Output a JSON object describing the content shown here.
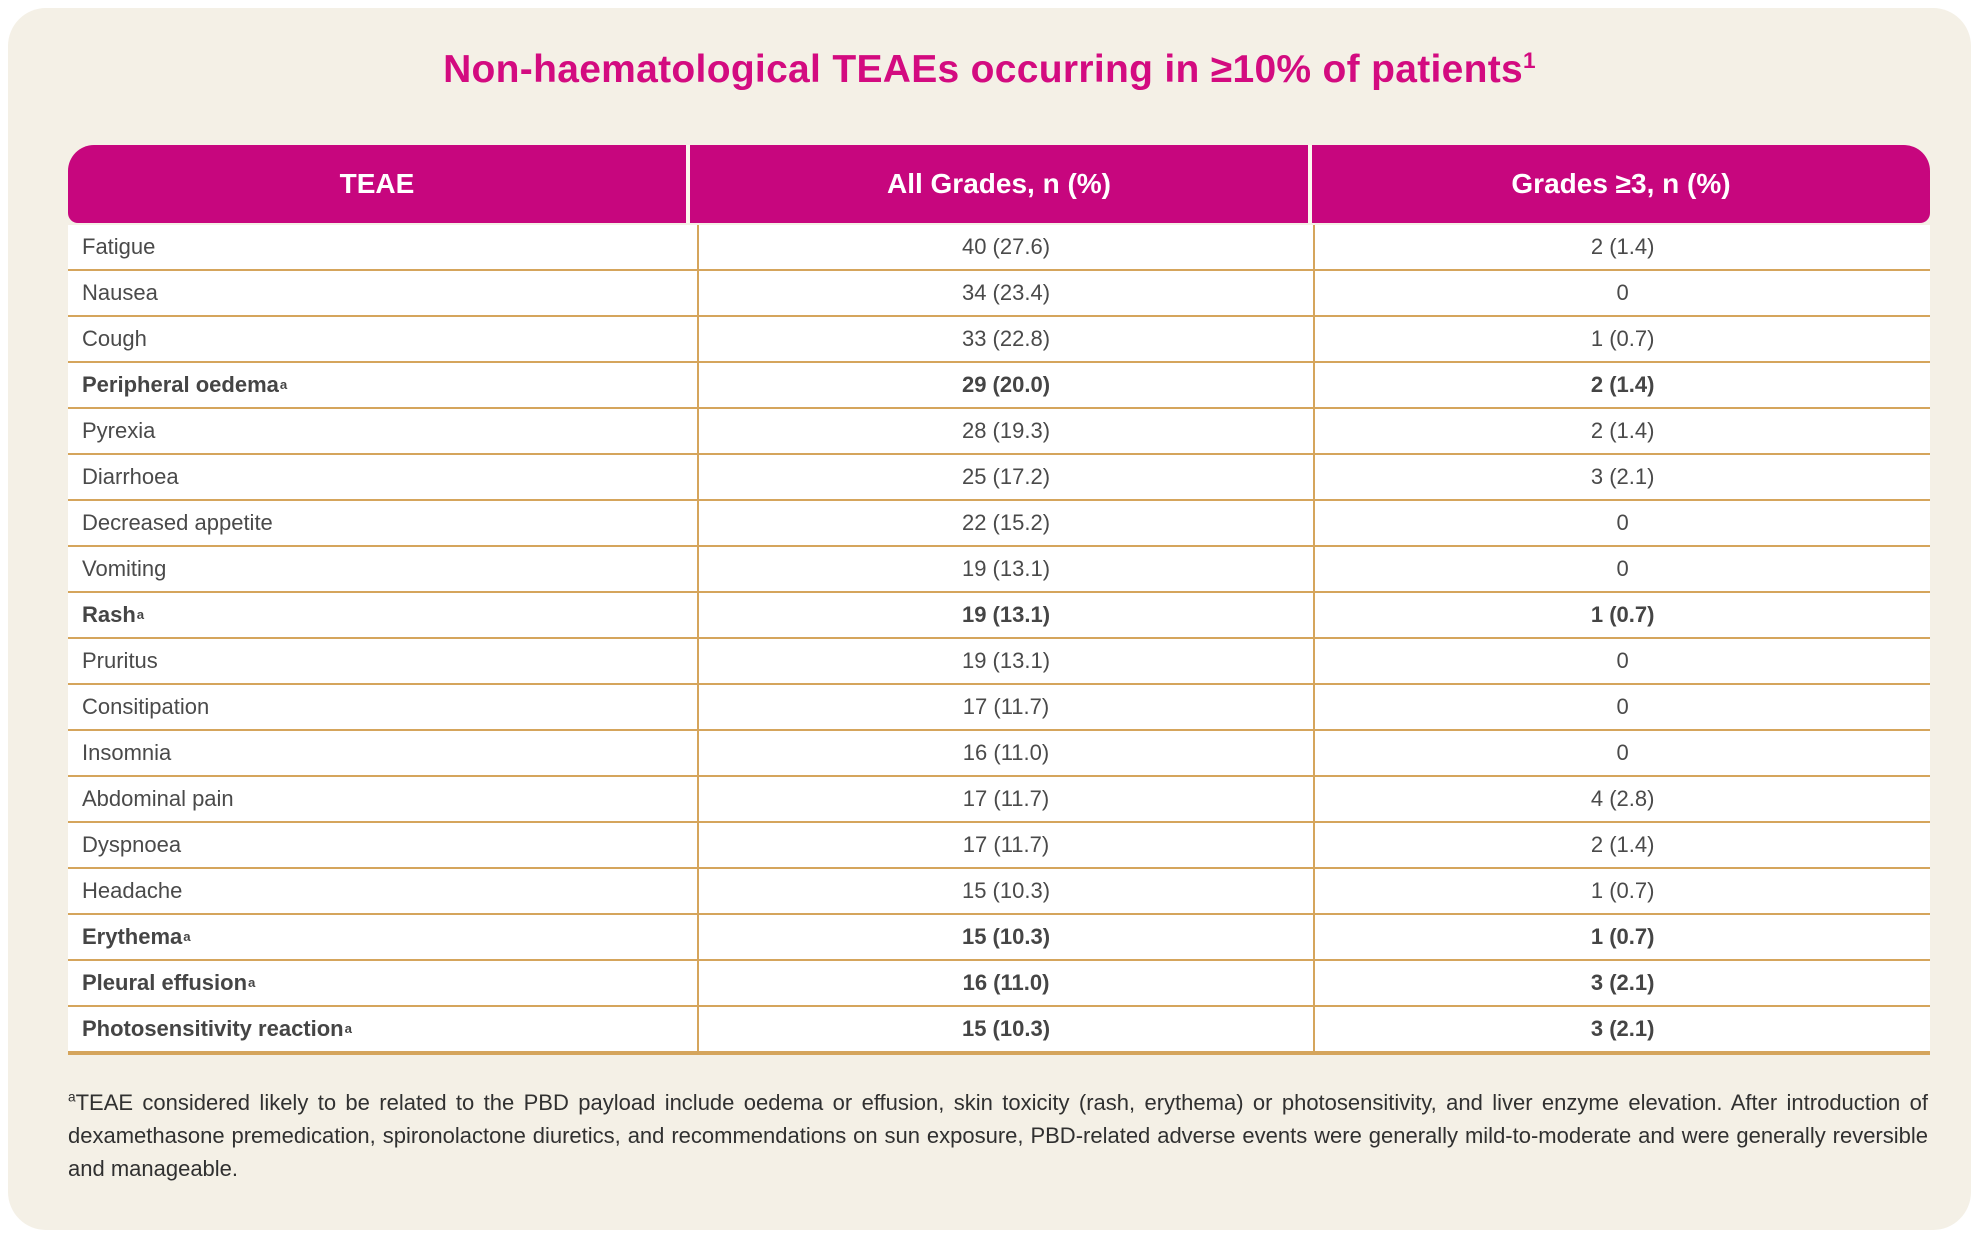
{
  "page": {
    "title": {
      "text": "Non-haematological TEAEs occurring in ≥10% of patients",
      "sup": "1"
    }
  },
  "table": {
    "headers": [
      "TEAE",
      "All Grades, n (%)",
      "Grades ≥3, n (%)"
    ],
    "rows": [
      {
        "teae": "Fatigue",
        "sup": "",
        "all_grades": "40 (27.6)",
        "grades_ge3": "2 (1.4)",
        "bold": false
      },
      {
        "teae": "Nausea",
        "sup": "",
        "all_grades": "34 (23.4)",
        "grades_ge3": "0",
        "bold": false
      },
      {
        "teae": "Cough",
        "sup": "",
        "all_grades": "33 (22.8)",
        "grades_ge3": "1 (0.7)",
        "bold": false
      },
      {
        "teae": "Peripheral oedema",
        "sup": "a",
        "all_grades": "29 (20.0)",
        "grades_ge3": "2 (1.4)",
        "bold": true
      },
      {
        "teae": "Pyrexia",
        "sup": "",
        "all_grades": "28 (19.3)",
        "grades_ge3": "2 (1.4)",
        "bold": false
      },
      {
        "teae": "Diarrhoea",
        "sup": "",
        "all_grades": "25 (17.2)",
        "grades_ge3": "3 (2.1)",
        "bold": false
      },
      {
        "teae": "Decreased appetite",
        "sup": "",
        "all_grades": "22 (15.2)",
        "grades_ge3": "0",
        "bold": false
      },
      {
        "teae": "Vomiting",
        "sup": "",
        "all_grades": "19 (13.1)",
        "grades_ge3": "0",
        "bold": false
      },
      {
        "teae": "Rash",
        "sup": "a",
        "all_grades": "19 (13.1)",
        "grades_ge3": "1 (0.7)",
        "bold": true
      },
      {
        "teae": "Pruritus",
        "sup": "",
        "all_grades": "19 (13.1)",
        "grades_ge3": "0",
        "bold": false
      },
      {
        "teae": "Consitipation",
        "sup": "",
        "all_grades": "17 (11.7)",
        "grades_ge3": "0",
        "bold": false
      },
      {
        "teae": "Insomnia",
        "sup": "",
        "all_grades": "16 (11.0)",
        "grades_ge3": "0",
        "bold": false
      },
      {
        "teae": "Abdominal pain",
        "sup": "",
        "all_grades": "17 (11.7)",
        "grades_ge3": "4 (2.8)",
        "bold": false
      },
      {
        "teae": "Dyspnoea",
        "sup": "",
        "all_grades": "17 (11.7)",
        "grades_ge3": "2 (1.4)",
        "bold": false
      },
      {
        "teae": "Headache",
        "sup": "",
        "all_grades": "15 (10.3)",
        "grades_ge3": "1 (0.7)",
        "bold": false
      },
      {
        "teae": "Erythema",
        "sup": "a",
        "all_grades": "15 (10.3)",
        "grades_ge3": "1 (0.7)",
        "bold": true
      },
      {
        "teae": "Pleural effusion",
        "sup": "a",
        "all_grades": "16 (11.0)",
        "grades_ge3": "3 (2.1)",
        "bold": true
      },
      {
        "teae": "Photosensitivity reaction",
        "sup": "a",
        "all_grades": "15 (10.3)",
        "grades_ge3": "3 (2.1)",
        "bold": true
      }
    ]
  },
  "footnote": {
    "sup": "a",
    "text": "TEAE considered likely to be related to the PBD payload include oedema or effusion, skin toxicity (rash, erythema) or photosensitivity, and liver enzyme elevation. After introduction of dexamethasone premedication, spironolactone diuretics, and recommendations on sun exposure, PBD-related adverse events were generally mild-to-moderate and were generally reversible and manageable."
  },
  "colors": {
    "header_bg": "#C7067E",
    "title_text": "#D30B80",
    "table_border": "#D5A55C",
    "page_bg": "#F4F0E6",
    "row_text": "#4A4A4A"
  }
}
